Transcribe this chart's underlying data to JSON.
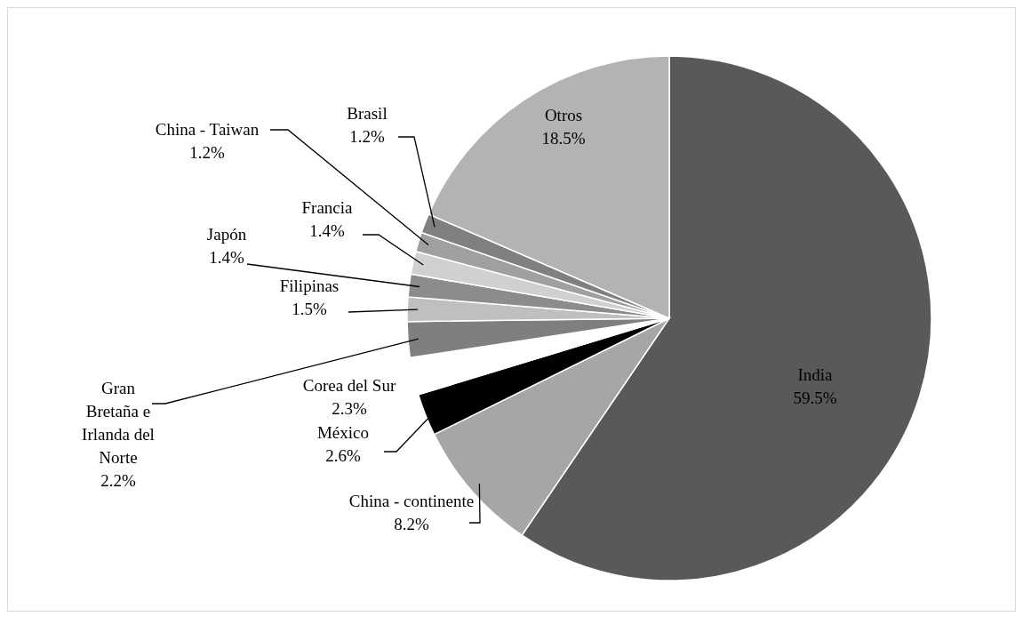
{
  "chart_data": {
    "type": "pie",
    "categories": [
      "India",
      "China - continente",
      "México",
      "Corea del Sur",
      "Gran Bretaña e Irlanda del Norte",
      "Filipinas",
      "Japón",
      "Francia",
      "China - Taiwan",
      "Brasil",
      "Otros"
    ],
    "values": [
      59.5,
      8.2,
      2.6,
      2.3,
      2.2,
      1.5,
      1.4,
      1.4,
      1.2,
      1.2,
      18.5
    ],
    "value_labels": [
      "59.5%",
      "8.2%",
      "2.6%",
      "2.3%",
      "2.2%",
      "1.5%",
      "1.4%",
      "1.4%",
      "1.2%",
      "1.2%",
      "18.5%"
    ],
    "colors": [
      "#595959",
      "#a6a6a6",
      "#000000",
      "#ffffff",
      "#7f7f7f",
      "#bfbfbf",
      "#8c8c8c",
      "#d0d0d0",
      "#a0a0a0",
      "#808080",
      "#b3b3b3"
    ]
  }
}
